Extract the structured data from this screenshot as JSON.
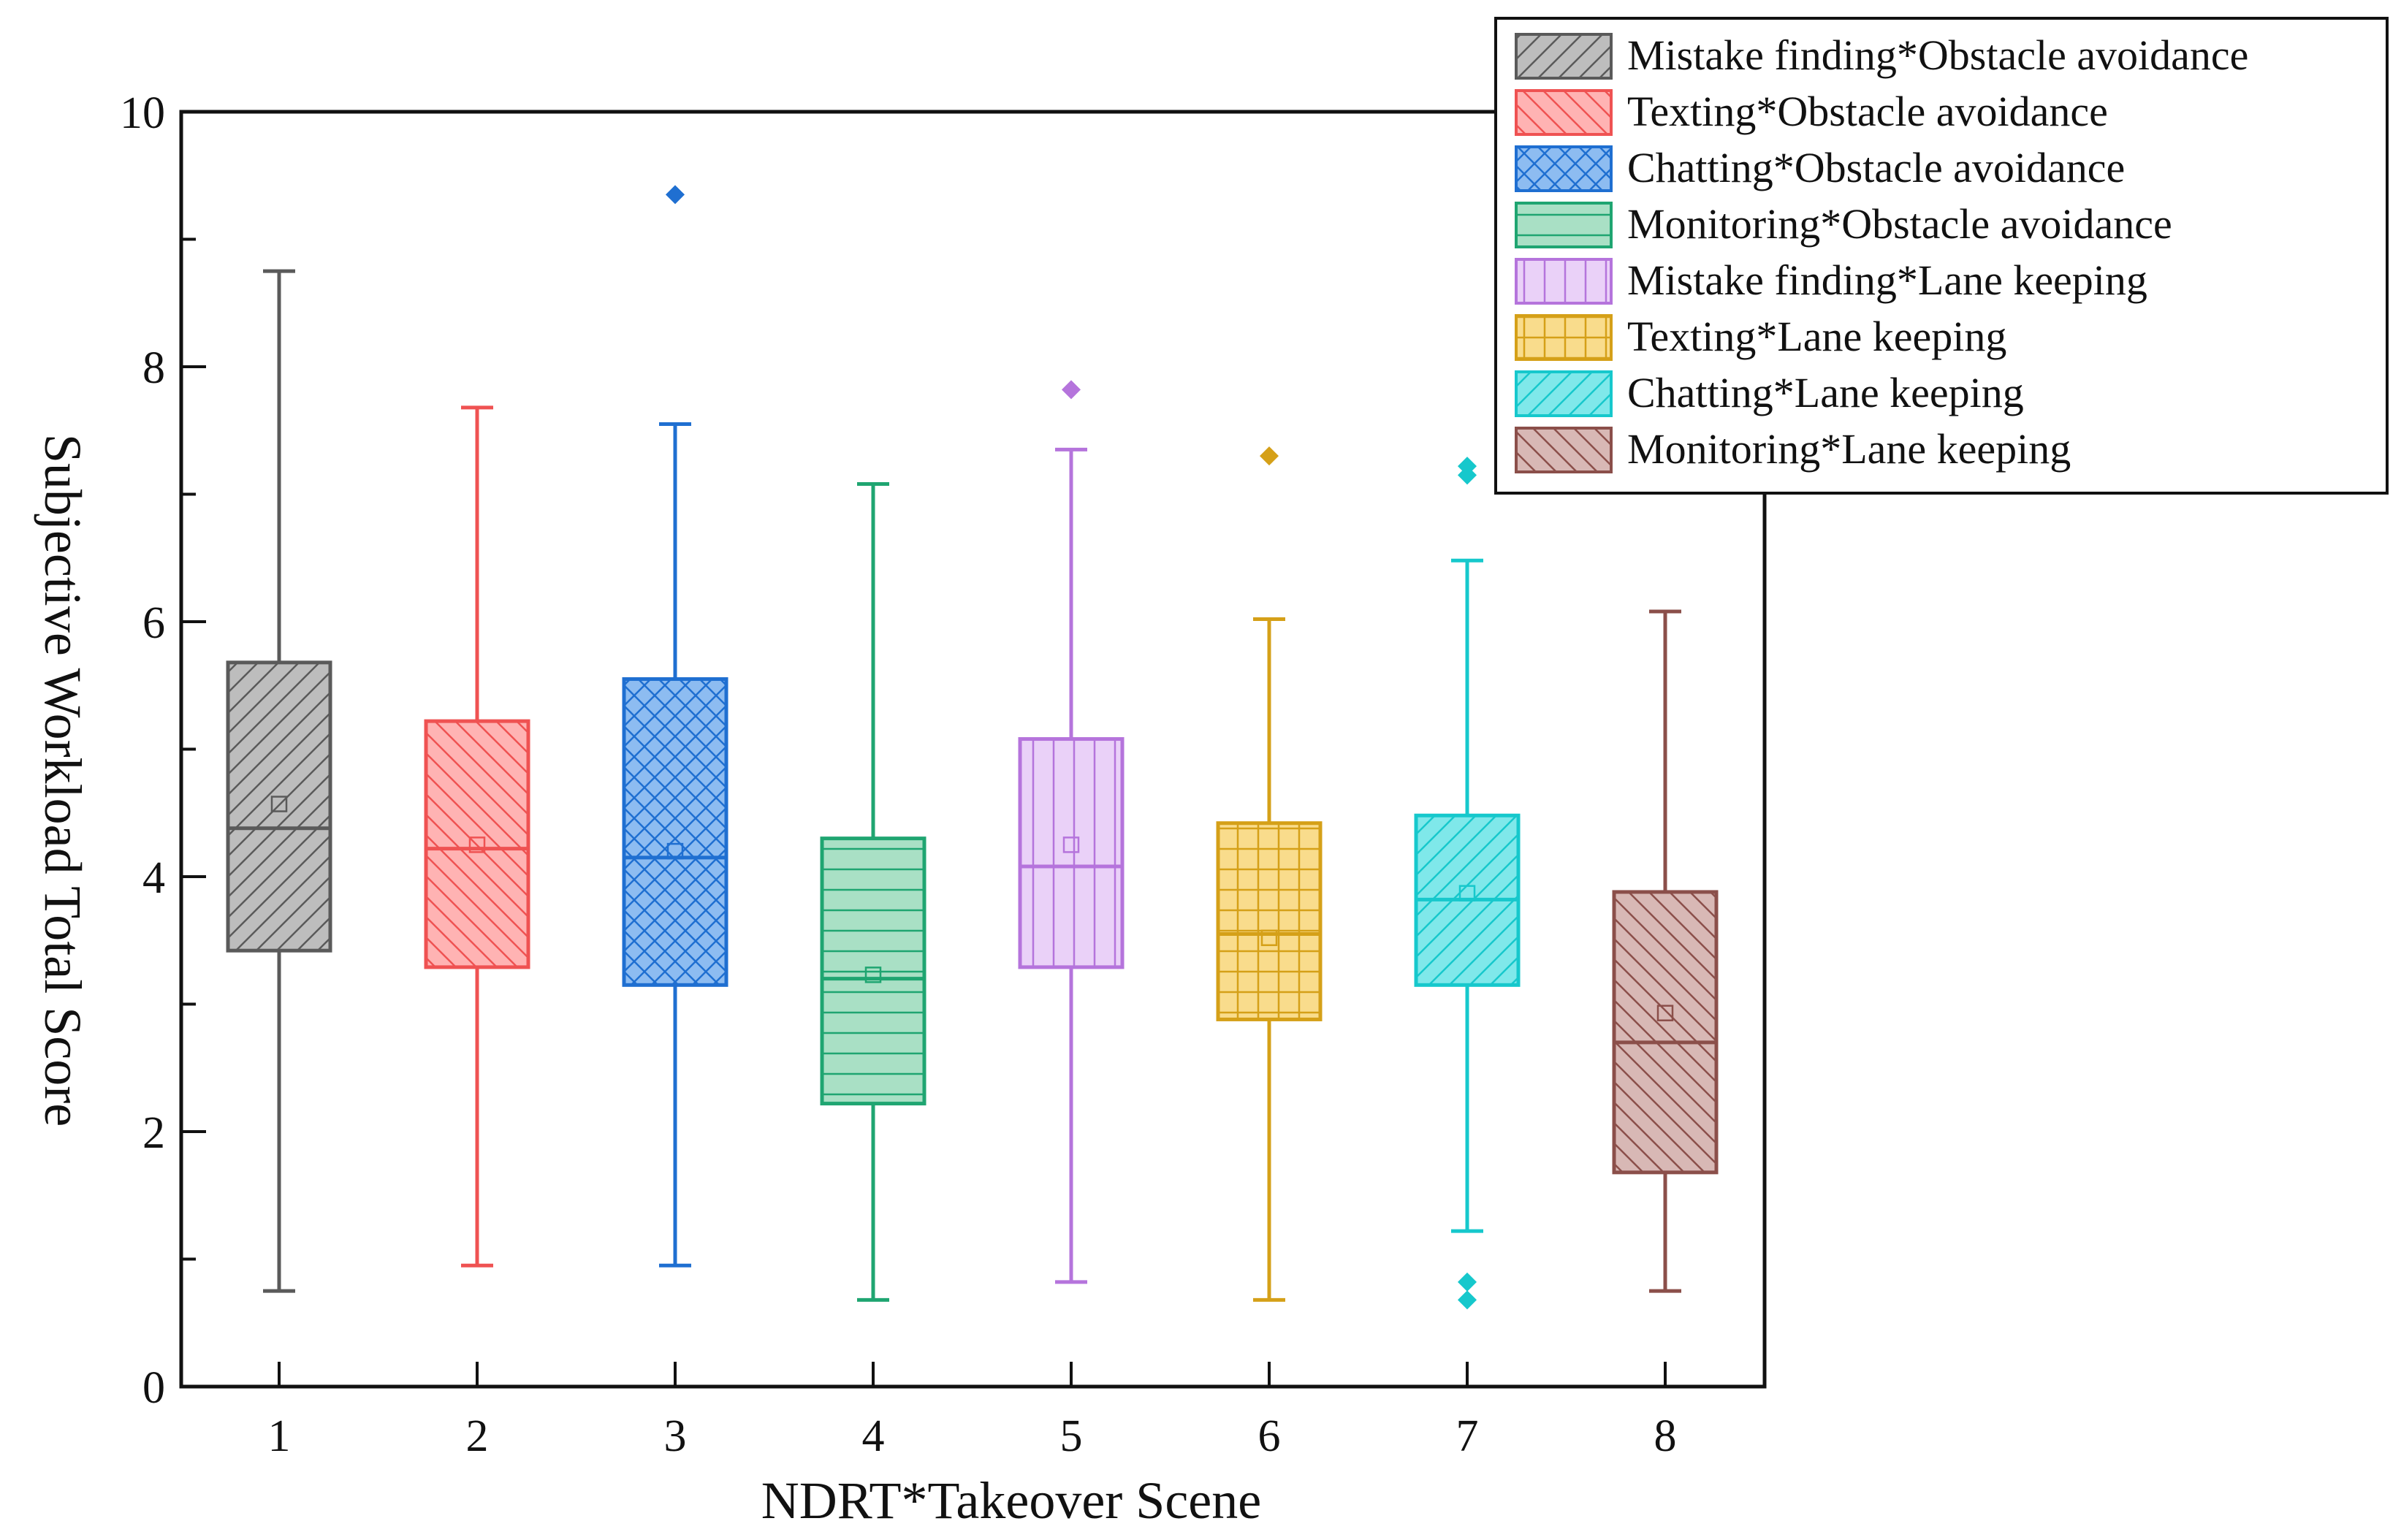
{
  "chart_data": {
    "type": "box",
    "xlabel": "NDRT*Takeover Scene",
    "ylabel": "Subjective Workload Total Score",
    "ylim": [
      0,
      10
    ],
    "yticks": [
      "0",
      "2",
      "4",
      "6",
      "8",
      "10"
    ],
    "categories": [
      "1",
      "2",
      "3",
      "4",
      "5",
      "6",
      "7",
      "8"
    ],
    "legend_position": "top-right",
    "series": [
      {
        "name": "Mistake finding*Obstacle avoidance",
        "color": "#5a5a5a",
        "fill": "#bdbdbd",
        "pattern": "diagonal-right",
        "whisker_low": 0.75,
        "q1": 3.42,
        "median": 4.38,
        "q3": 5.68,
        "whisker_high": 8.75,
        "mean": 4.57,
        "outliers": []
      },
      {
        "name": "Texting*Obstacle avoidance",
        "color": "#ef5252",
        "fill": "#ffb3b3",
        "pattern": "diagonal-left",
        "whisker_low": 0.95,
        "q1": 3.29,
        "median": 4.22,
        "q3": 5.22,
        "whisker_high": 7.68,
        "mean": 4.25,
        "outliers": []
      },
      {
        "name": "Chatting*Obstacle avoidance",
        "color": "#1f6fd1",
        "fill": "#8dbcf1",
        "pattern": "crosshatch",
        "whisker_low": 0.95,
        "q1": 3.15,
        "median": 4.15,
        "q3": 5.55,
        "whisker_high": 7.55,
        "mean": 4.2,
        "outliers": [
          9.35
        ]
      },
      {
        "name": "Monitoring*Obstacle avoidance",
        "color": "#1fa571",
        "fill": "#a9e0c5",
        "pattern": "horizontal",
        "whisker_low": 0.68,
        "q1": 2.22,
        "median": 3.2,
        "q3": 4.3,
        "whisker_high": 7.08,
        "mean": 3.23,
        "outliers": []
      },
      {
        "name": "Mistake finding*Lane keeping",
        "color": "#b574dc",
        "fill": "#ead1f8",
        "pattern": "vertical",
        "whisker_low": 0.82,
        "q1": 3.29,
        "median": 4.08,
        "q3": 5.08,
        "whisker_high": 7.35,
        "mean": 4.25,
        "outliers": [
          7.82
        ]
      },
      {
        "name": "Texting*Lane keeping",
        "color": "#d5a018",
        "fill": "#f9dc8c",
        "pattern": "grid",
        "whisker_low": 0.68,
        "q1": 2.88,
        "median": 3.55,
        "q3": 4.42,
        "whisker_high": 6.02,
        "mean": 3.52,
        "outliers": [
          7.3
        ]
      },
      {
        "name": "Chatting*Lane keeping",
        "color": "#16c8cc",
        "fill": "#7fe8ea",
        "pattern": "diagonal-right",
        "whisker_low": 1.22,
        "q1": 3.15,
        "median": 3.82,
        "q3": 4.48,
        "whisker_high": 6.48,
        "mean": 3.87,
        "outliers": [
          7.22,
          7.15,
          0.82,
          0.68
        ]
      },
      {
        "name": "Monitoring*Lane keeping",
        "color": "#8b4f4a",
        "fill": "#d8b8b5",
        "pattern": "diagonal-left",
        "whisker_low": 0.75,
        "q1": 1.68,
        "median": 2.7,
        "q3": 3.88,
        "whisker_high": 6.08,
        "mean": 2.93,
        "outliers": []
      }
    ]
  }
}
